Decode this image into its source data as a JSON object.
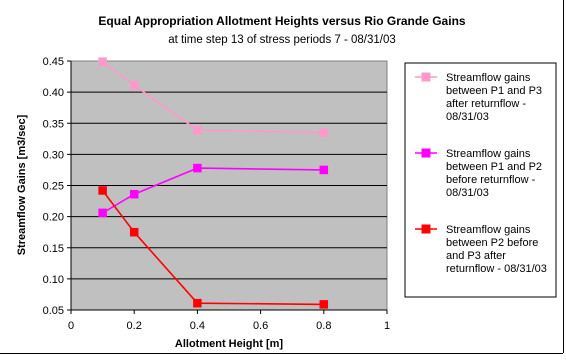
{
  "chart_data": {
    "type": "line",
    "title": "Equal Appropriation Allotment Heights versus Rio Grande Gains",
    "subtitle": "at time step 13 of stress periods 7 - 08/31/03",
    "xlabel": "Allotment Height [m]",
    "ylabel": "Streamflow Gains [m3/sec]",
    "xlim": [
      0,
      1
    ],
    "ylim": [
      0.05,
      0.45
    ],
    "x_ticks": [
      "0",
      "0.2",
      "0.4",
      "0.6",
      "0.8",
      "1"
    ],
    "y_ticks": [
      "0.05",
      "0.10",
      "0.15",
      "0.20",
      "0.25",
      "0.30",
      "0.35",
      "0.40",
      "0.45"
    ],
    "grid": "horizontal",
    "plot_background": "#c0c0c0",
    "legend_position": "right",
    "series": [
      {
        "name": "Streamflow gains between P1 and P3 after returnflow - 08/31/03",
        "legend_lines": [
          "Streamflow gains",
          "between P1 and P3",
          "after returnflow -",
          "08/31/03"
        ],
        "color": "#ff99cc",
        "x": [
          0.1,
          0.2,
          0.4,
          0.8
        ],
        "y": [
          0.449,
          0.411,
          0.339,
          0.335
        ]
      },
      {
        "name": "Streamflow gains between P1 and P2 before returnflow - 08/31/03",
        "legend_lines": [
          "Streamflow gains",
          "between P1 and P2",
          "before returnflow -",
          "08/31/03"
        ],
        "color": "#ff00ff",
        "x": [
          0.1,
          0.2,
          0.4,
          0.8
        ],
        "y": [
          0.206,
          0.236,
          0.278,
          0.275
        ]
      },
      {
        "name": "Streamflow gains between P2 before and P3 after returnflow - 08/31/03",
        "legend_lines": [
          "Streamflow gains",
          "between P2 before",
          "and P3 after",
          "returnflow - 08/31/03"
        ],
        "color": "#ff0000",
        "x": [
          0.1,
          0.2,
          0.4,
          0.8
        ],
        "y": [
          0.242,
          0.175,
          0.061,
          0.059
        ]
      }
    ]
  }
}
